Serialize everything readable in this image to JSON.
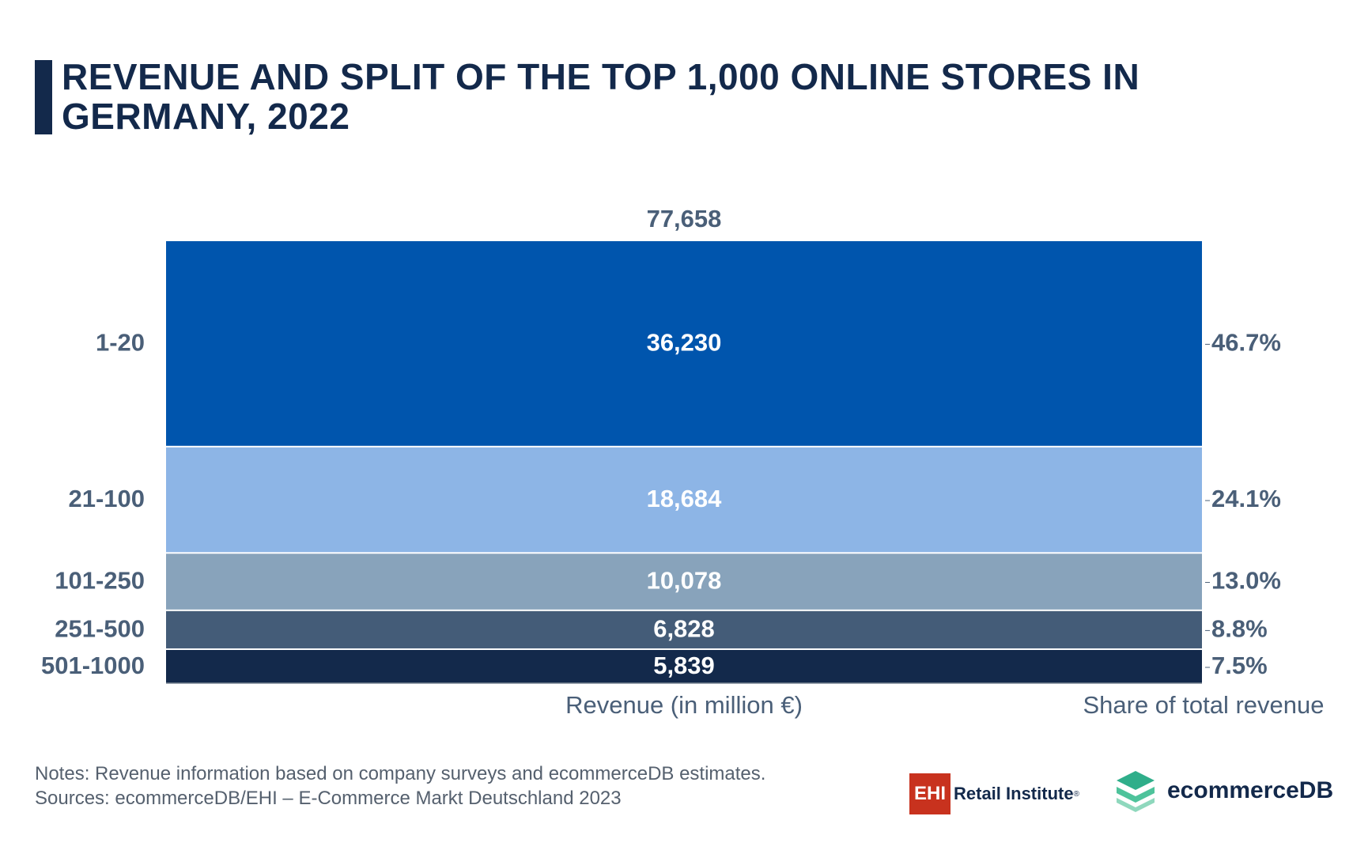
{
  "title": "REVENUE AND SPLIT OF THE TOP 1,000 ONLINE STORES IN GERMANY, 2022",
  "notes": {
    "line1": "Notes: Revenue information based on company surveys and ecommerceDB estimates.",
    "line2": "Sources: ecommerceDB/EHI – E-Commerce Markt Deutschland 2023"
  },
  "logos": {
    "ehi_abbrev": "EHI",
    "ehi_name": "Retail Institute",
    "ehi_reg": "®",
    "ecommercedb": "ecommerceDB"
  },
  "colors": {
    "title": "#13294b",
    "axis_text": "#4a5f78",
    "segments": [
      "#0055ad",
      "#8db5e6",
      "#88a3bb",
      "#445c78",
      "#13294b"
    ]
  },
  "chart_data": {
    "type": "bar",
    "subtype": "stacked-100-single-column",
    "total_label": "77,658",
    "total": 77658,
    "xlabel": "Revenue (in million €)",
    "share_label": "Share of total revenue",
    "categories": [
      "1-20",
      "21-100",
      "101-250",
      "251-500",
      "501-1000"
    ],
    "values": [
      36230,
      18684,
      10078,
      6828,
      5839
    ],
    "value_labels": [
      "36,230",
      "18,684",
      "10,078",
      "6,828",
      "5,839"
    ],
    "shares": [
      "46.7%",
      "24.1%",
      "13.0%",
      "8.8%",
      "7.5%"
    ]
  }
}
